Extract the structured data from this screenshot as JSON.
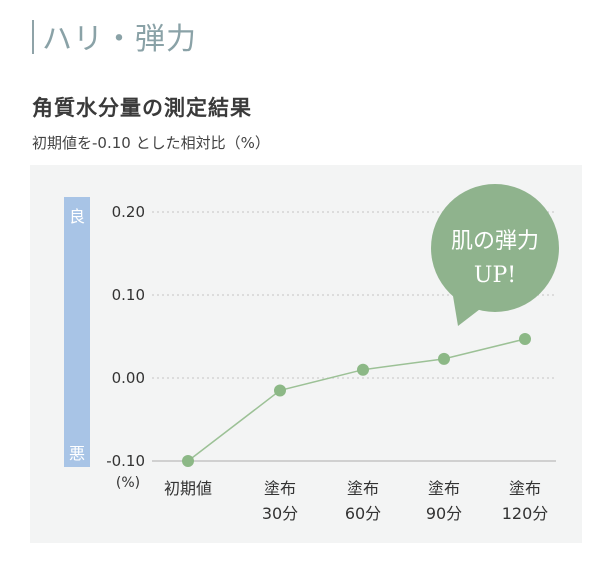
{
  "section": {
    "title": "ハリ・弾力"
  },
  "chart_data": {
    "type": "line",
    "title": "角質水分量の測定結果",
    "subtitle": "初期値を-0.10 とした相対比（%）",
    "categories": [
      [
        "初期値"
      ],
      [
        "塗布",
        "30分"
      ],
      [
        "塗布",
        "60分"
      ],
      [
        "塗布",
        "90分"
      ],
      [
        "塗布",
        "120分"
      ]
    ],
    "series": [
      {
        "values": [
          -0.1,
          -0.015,
          0.01,
          0.023,
          0.047
        ]
      }
    ],
    "yticks": [
      "0.20",
      "0.10",
      "0.00",
      "-0.10"
    ],
    "ylim": [
      -0.1,
      0.2
    ],
    "yunit": "(%)",
    "axis_good": "良",
    "axis_bad": "悪",
    "grid": true,
    "badge": {
      "line1": "肌の弾力",
      "line2": "UP!"
    },
    "colors": {
      "line": "#9cc196",
      "point": "#8cb886",
      "axis_bar": "#a8c4e6",
      "badge": "#8fb38d",
      "grid": "#c4c4c4"
    }
  }
}
